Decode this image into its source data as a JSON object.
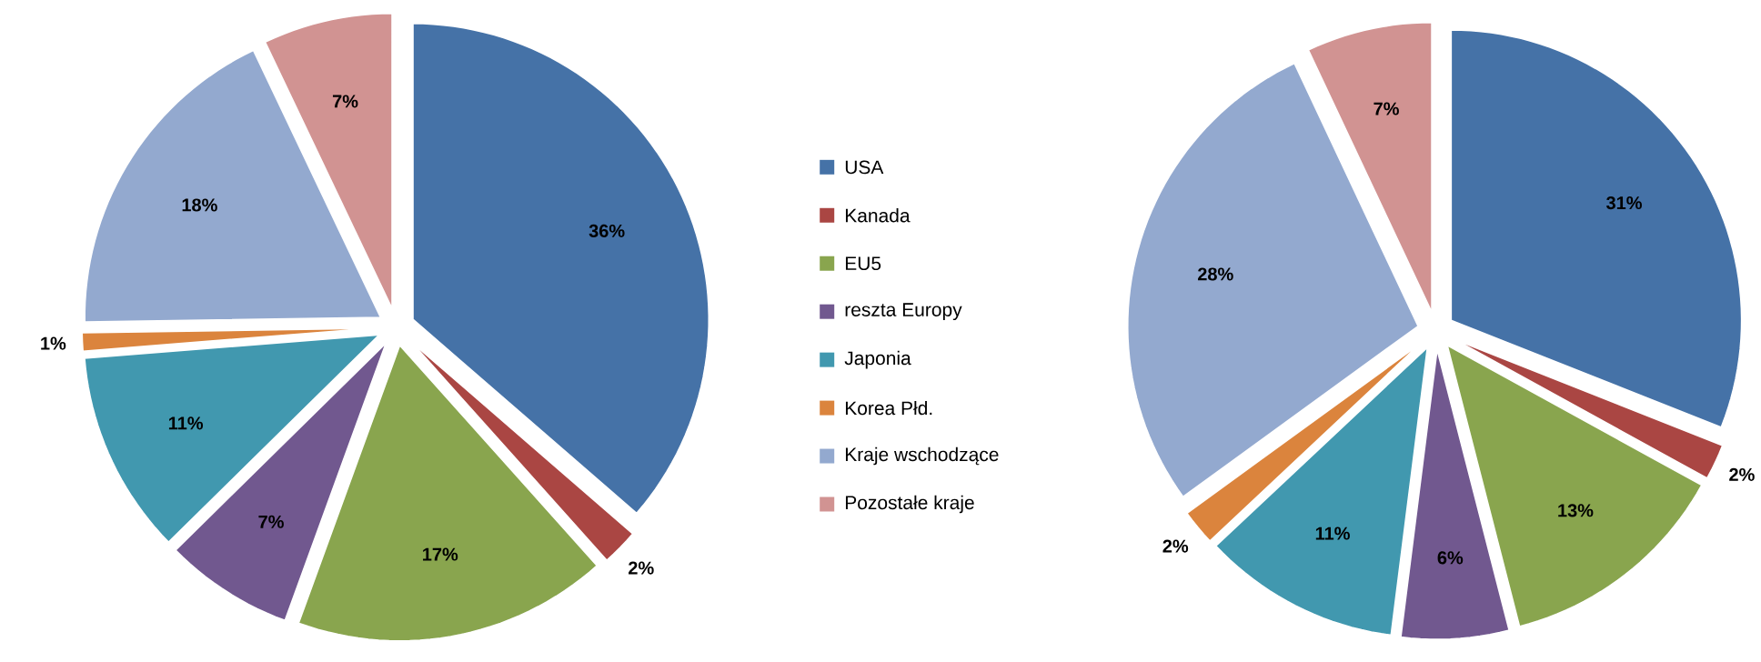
{
  "chart_data": [
    {
      "type": "pie",
      "categories": [
        "USA",
        "Kanada",
        "EU5",
        "reszta Europy",
        "Japonia",
        "Korea Płd.",
        "Kraje wschodzące",
        "Pozostałe kraje"
      ],
      "values": [
        36,
        2,
        17,
        7,
        11,
        1,
        18,
        7
      ],
      "value_labels": [
        "36%",
        "2%",
        "17%",
        "7%",
        "11%",
        "1%",
        "18%",
        "7%"
      ],
      "colors": [
        "#4572a7",
        "#aa4643",
        "#89a54e",
        "#71588f",
        "#4198af",
        "#db843d",
        "#93a9cf",
        "#d19392"
      ],
      "legend": "right"
    },
    {
      "type": "pie",
      "categories": [
        null,
        null,
        null,
        null,
        null,
        null,
        null,
        null
      ],
      "values": [
        31,
        2,
        13,
        6,
        11,
        2,
        28,
        7
      ],
      "value_labels": [
        "31%",
        "2%",
        "13%",
        "6%",
        "11%",
        "2%",
        "28%",
        "7%"
      ],
      "colors": [
        "#4572a7",
        "#aa4643",
        "#89a54e",
        "#71588f",
        "#4198af",
        "#db843d",
        "#93a9cf",
        "#d19392"
      ]
    }
  ]
}
